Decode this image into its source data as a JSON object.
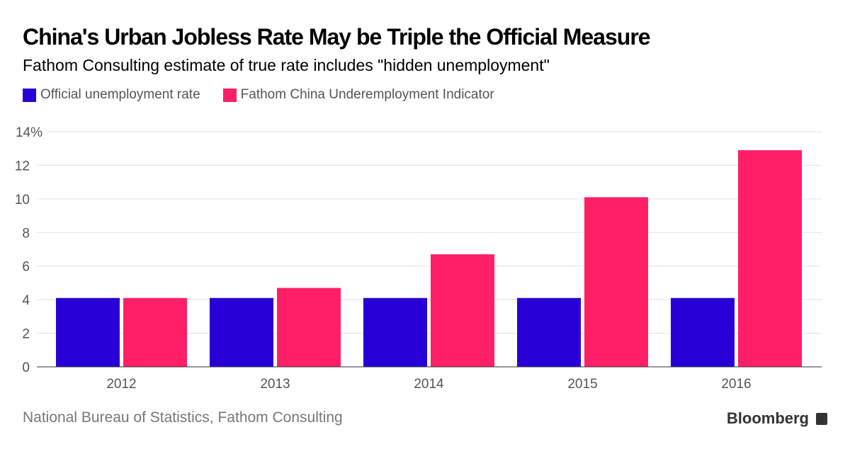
{
  "title": "China's Urban Jobless Rate May be Triple the Official Measure",
  "subtitle": "Fathom Consulting estimate of true rate includes \"hidden unemployment\"",
  "source": "National Bureau of Statistics, Fathom Consulting",
  "logo_text": "Bloomberg",
  "chart_data": {
    "type": "bar",
    "title": "China's Urban Jobless Rate May be Triple the Official Measure",
    "xlabel": "",
    "ylabel": "",
    "categories": [
      "2012",
      "2013",
      "2014",
      "2015",
      "2016"
    ],
    "series": [
      {
        "name": "Official unemployment rate",
        "color": "#2800d7",
        "values": [
          4.1,
          4.1,
          4.1,
          4.1,
          4.1
        ]
      },
      {
        "name": "Fathom China Underemployment Indicator",
        "color": "#ff1f66",
        "values": [
          4.1,
          4.7,
          6.7,
          10.1,
          12.9
        ]
      }
    ],
    "ylim": [
      0,
      14
    ],
    "yticks": [
      0,
      2,
      4,
      6,
      8,
      10,
      12,
      14
    ],
    "ytick_labels": [
      "0",
      "2",
      "4",
      "6",
      "8",
      "10",
      "12",
      "14%"
    ],
    "grid": true,
    "legend": "top-left"
  }
}
